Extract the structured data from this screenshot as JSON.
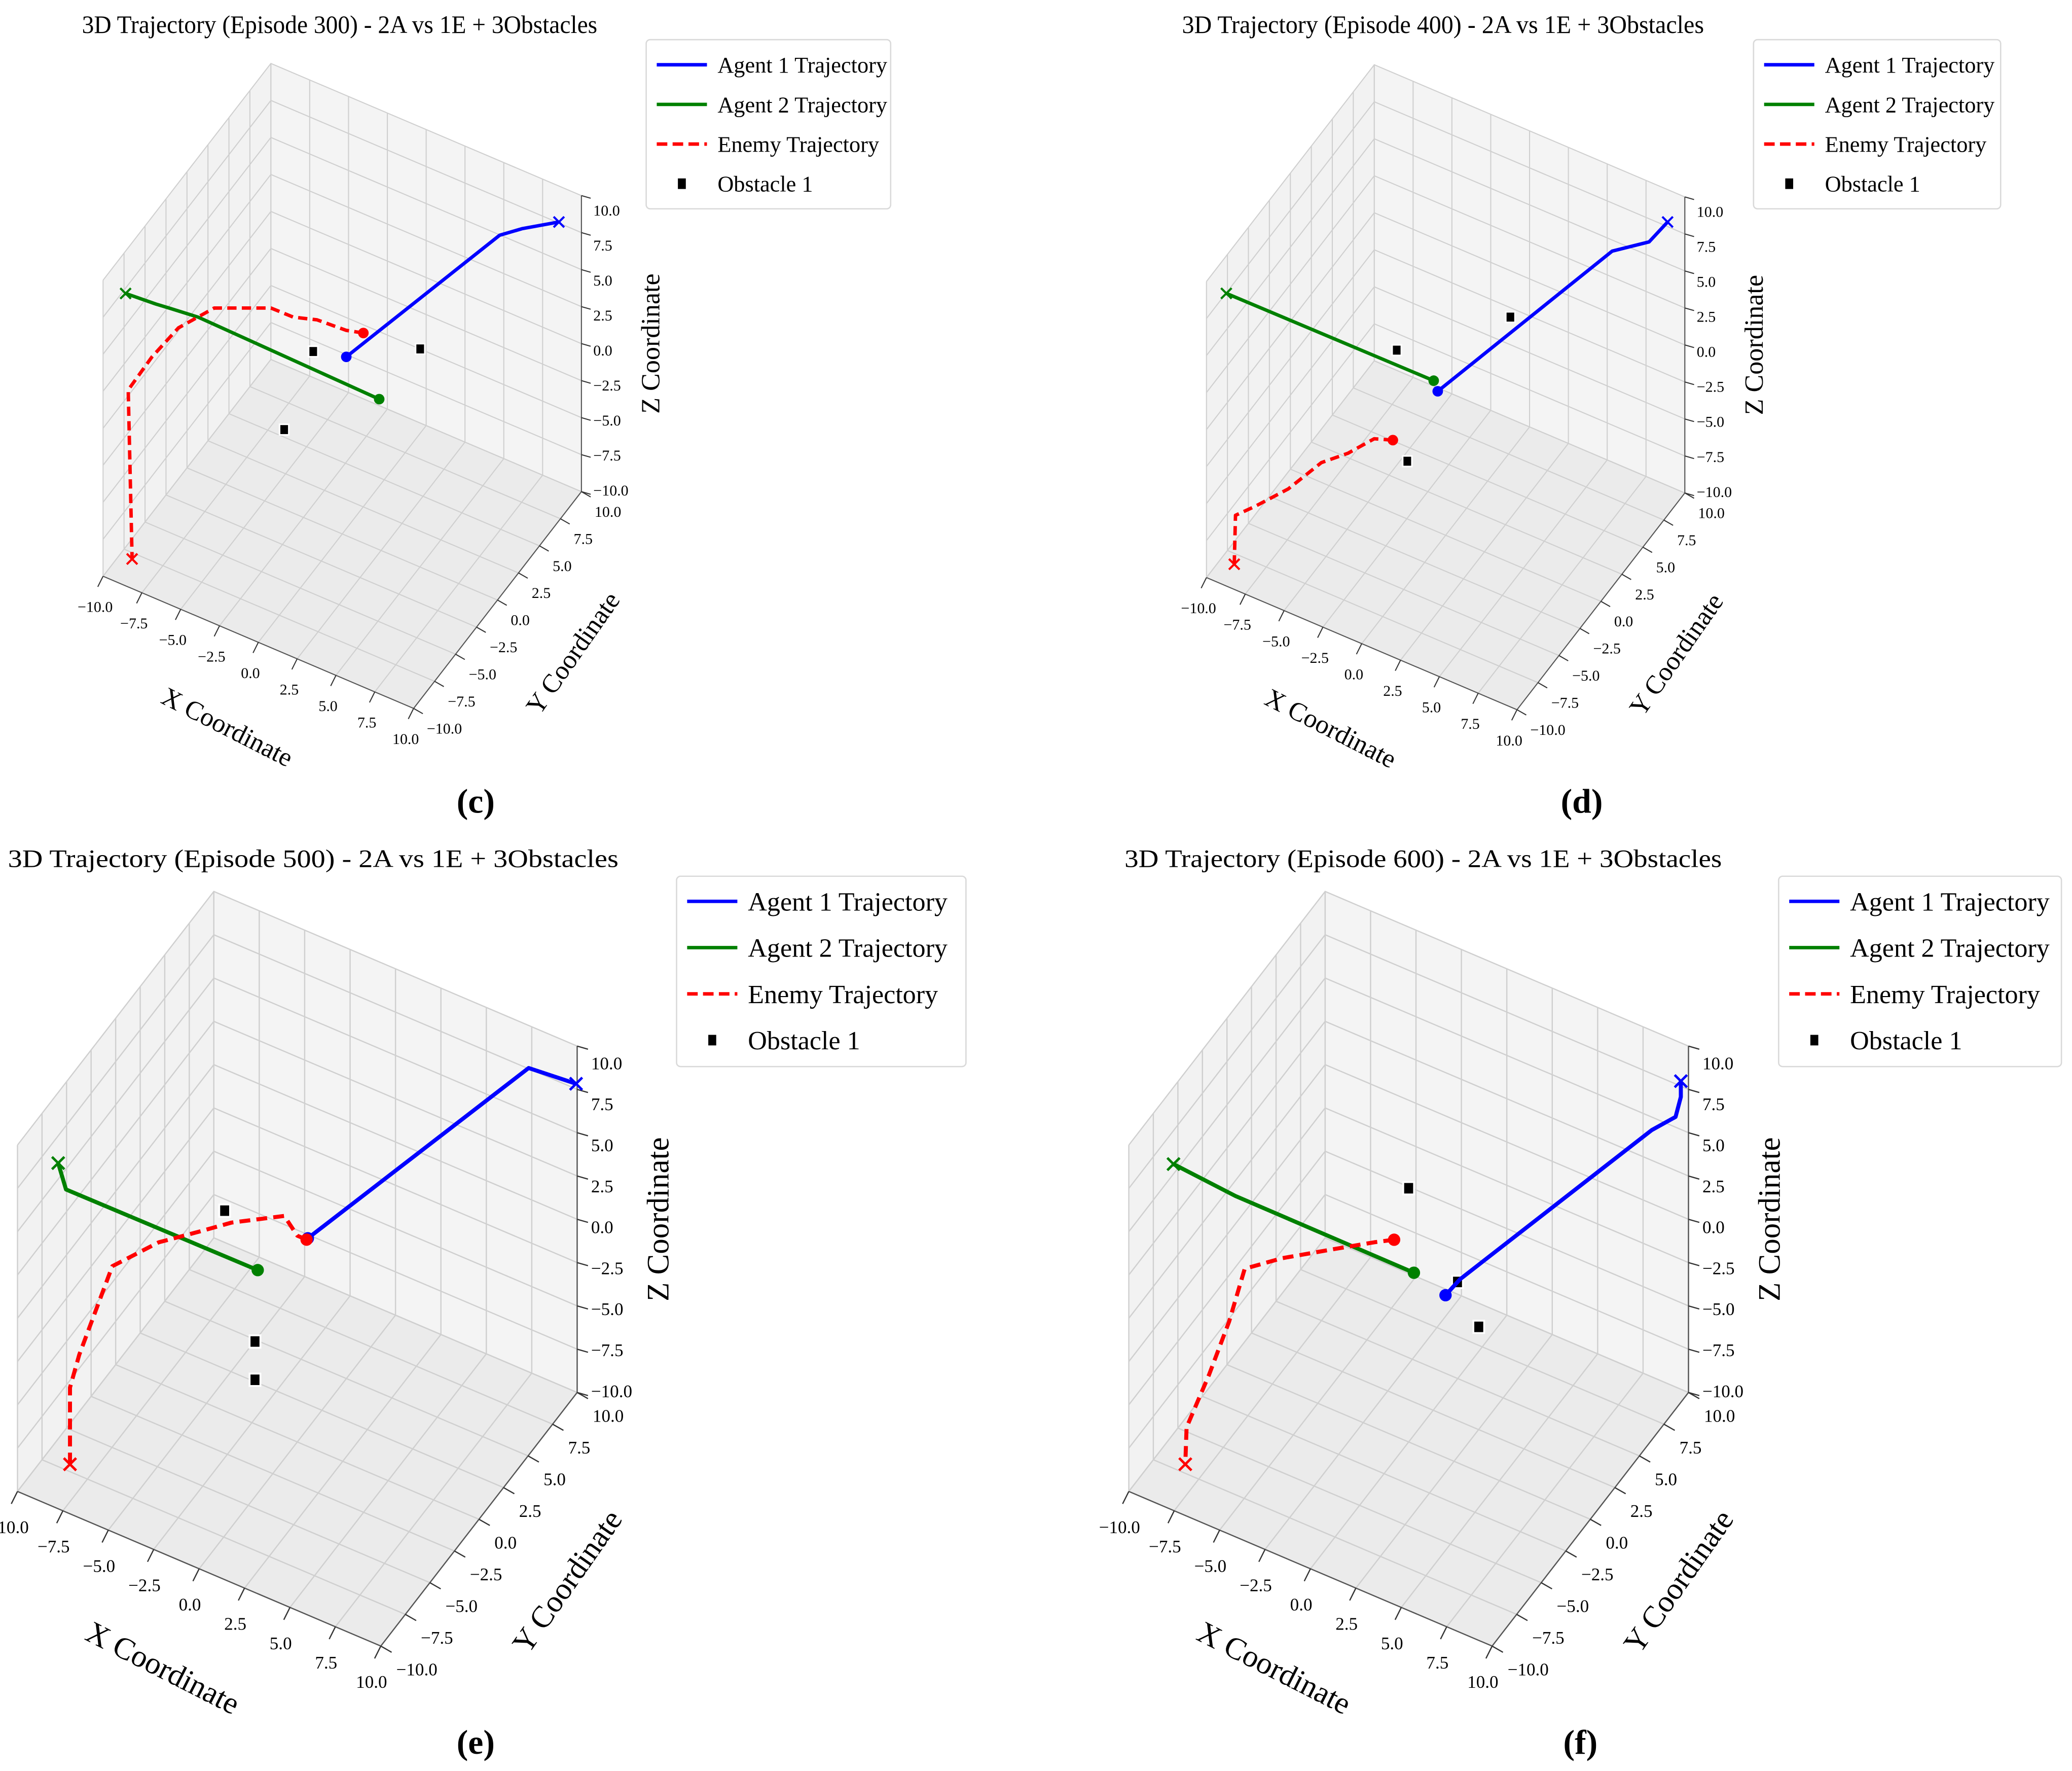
{
  "chart_data": [
    {
      "type": "line3d",
      "subfigure_label": "(c)",
      "title": "3D Trajectory (Episode 300) - 2A vs 1E + 3Obstacles",
      "xlabel": "X Coordinate",
      "ylabel": "Y Coordinate",
      "zlabel": "Z Coordinate",
      "xlim": [
        -10,
        10
      ],
      "ylim": [
        -10,
        10
      ],
      "zlim": [
        -10,
        10
      ],
      "ticks": [
        -10,
        -7.5,
        -5,
        -2.5,
        0,
        2.5,
        5,
        7.5,
        10
      ],
      "tick_labels": [
        "−10.0",
        "−7.5",
        "−5.0",
        "−2.5",
        "0.0",
        "2.5",
        "5.0",
        "7.5",
        "10.0"
      ],
      "grid": true,
      "legend": [
        "Agent 1 Trajectory",
        "Agent 2 Trajectory",
        "Enemy Trajectory",
        "Obstacle 1"
      ],
      "legend_position": "outside-top-right",
      "series": [
        {
          "name": "Agent 1 Trajectory",
          "color": "#0000ff",
          "style": "solid",
          "points": [
            [
              0.26,
              0,
              2.08
            ],
            [
              6.89,
              6,
              8.86
            ],
            [
              7.25,
              8,
              8.0
            ],
            [
              8.55,
              10,
              7.57
            ]
          ]
        },
        {
          "name": "Agent 2 Trajectory",
          "color": "#008000",
          "style": "solid",
          "points": [
            [
              2.38,
              0,
              0.17
            ],
            [
              -4.95,
              -8,
              8.29
            ],
            [
              -6.83,
              -8,
              8.07
            ],
            [
              -7.68,
              -8,
              7.96
            ],
            [
              -8.55,
              -10,
              9.75
            ]
          ]
        },
        {
          "name": "Enemy Trajectory",
          "color": "#ff0000",
          "style": "dashed",
          "points": [
            [
              1.36,
              0,
              4.18
            ],
            [
              0.26,
              0,
              3.87
            ],
            [
              -1.62,
              0,
              3.74
            ],
            [
              -3.15,
              0,
              3.24
            ],
            [
              -3.51,
              -2,
              5.16
            ],
            [
              -6.09,
              -4,
              5.47
            ],
            [
              -7.31,
              -6,
              5.05
            ],
            [
              -7.93,
              -8,
              4.28
            ],
            [
              -8.38,
              -10,
              3.31
            ],
            [
              -8.13,
              -10,
              -8.0
            ]
          ]
        }
      ],
      "obstacles": [
        [
          -1.87,
          0,
          1.49
        ],
        [
          5.02,
          0,
          4.74
        ],
        [
          -3.74,
          0,
          -4.62
        ]
      ]
    },
    {
      "type": "line3d",
      "subfigure_label": "(d)",
      "title": "3D Trajectory (Episode 400) - 2A vs 1E + 3Obstacles",
      "xlabel": "X Coordinate",
      "ylabel": "Y Coordinate",
      "zlabel": "Z Coordinate",
      "xlim": [
        -10,
        10
      ],
      "ylim": [
        -10,
        10
      ],
      "zlim": [
        -10,
        10
      ],
      "ticks": [
        -10,
        -7.5,
        -5,
        -2.5,
        0,
        2.5,
        5,
        7.5,
        10
      ],
      "tick_labels": [
        "−10.0",
        "−7.5",
        "−5.0",
        "−2.5",
        "0.0",
        "2.5",
        "5.0",
        "7.5",
        "10.0"
      ],
      "grid": true,
      "legend": [
        "Agent 1 Trajectory",
        "Agent 2 Trajectory",
        "Enemy Trajectory",
        "Obstacle 1"
      ],
      "legend_position": "outside-top-right",
      "series": [
        {
          "name": "Agent 1 Trajectory",
          "color": "#0000ff",
          "style": "solid",
          "points": [
            [
              -0.51,
              0,
              -0.5
            ],
            [
              7.48,
              6,
              8.14
            ],
            [
              8.24,
              9,
              6.91
            ],
            [
              8.89,
              10,
              7.81
            ]
          ]
        },
        {
          "name": "Agent 2 Trajectory",
          "color": "#008000",
          "style": "solid",
          "points": [
            [
              -0.77,
              0,
              0.1
            ],
            [
              -8.72,
              -10,
              9.77
            ]
          ]
        },
        {
          "name": "Enemy Trajectory",
          "color": "#ff0000",
          "style": "dashed",
          "points": [
            [
              -3.4,
              0,
              -5.09
            ],
            [
              -4.06,
              -1,
              -4.56
            ],
            [
              -5.22,
              -2,
              -5.33
            ],
            [
              -5.84,
              -4,
              -4.77
            ],
            [
              -6.89,
              -6,
              -5.55
            ],
            [
              -7.93,
              -8,
              -5.72
            ],
            [
              -8.13,
              -10,
              -4.96
            ],
            [
              -8.21,
              -10,
              -8.3
            ]
          ]
        }
      ],
      "obstacles": [
        [
          -3.15,
          0,
          1.1
        ],
        [
          4.17,
          0,
          6.6
        ],
        [
          -2.47,
          0,
          -6.1
        ]
      ]
    },
    {
      "type": "line3d",
      "subfigure_label": "(e)",
      "title": "3D Trajectory (Episode 500) - 2A vs 1E + 3Obstacles",
      "xlabel": "X Coordinate",
      "ylabel": "Y Coordinate",
      "zlabel": "Z Coordinate",
      "xlim": [
        -10,
        10
      ],
      "ylim": [
        -10,
        10
      ],
      "zlim": [
        -10,
        10
      ],
      "ticks": [
        -10,
        -7.5,
        -5,
        -2.5,
        0,
        2.5,
        5,
        7.5,
        10
      ],
      "tick_labels": [
        "−10.0",
        "−7.5",
        "−5.0",
        "−2.5",
        "0.0",
        "2.5",
        "5.0",
        "7.5",
        "10.0"
      ],
      "grid": true,
      "legend": [
        "Agent 1 Trajectory",
        "Agent 2 Trajectory",
        "Enemy Trajectory",
        "Obstacle 1"
      ],
      "legend_position": "outside-top-right",
      "series": [
        {
          "name": "Agent 1 Trajectory",
          "color": "#0000ff",
          "style": "solid",
          "points": [
            [
              0.58,
              0,
              2.02
            ],
            [
              8.41,
              8,
              9.49
            ],
            [
              9.94,
              10,
              7.8
            ]
          ]
        },
        {
          "name": "Agent 2 Trajectory",
          "color": "#008000",
          "style": "solid",
          "points": [
            [
              -2.18,
              0,
              -1.05
            ],
            [
              -7.33,
              -10,
              8.63
            ],
            [
              -7.76,
              -10,
              9.96
            ]
          ]
        },
        {
          "name": "Enemy Trajectory",
          "color": "#ff0000",
          "style": "dashed",
          "points": [
            [
              0.51,
              0,
              1.91
            ],
            [
              0,
              0,
              1.91
            ],
            [
              -0.72,
              0,
              2.73
            ],
            [
              -2.55,
              -2,
              2.99
            ],
            [
              -3.29,
              -4,
              3.59
            ],
            [
              -4.39,
              -6,
              3.96
            ],
            [
              -5.86,
              -8,
              3.39
            ],
            [
              -6.6,
              -10,
              -0.59
            ],
            [
              -7.11,
              -10,
              -2.71
            ],
            [
              -7.11,
              -10,
              -7.14
            ]
          ]
        }
      ],
      "obstacles": [
        [
          -4.0,
          0,
          1.57
        ],
        [
          -2.33,
          0,
          -5.24
        ],
        [
          -2.33,
          0,
          -7.45
        ]
      ]
    },
    {
      "type": "line3d",
      "subfigure_label": "(f)",
      "title": "3D Trajectory (Episode 600) - 2A vs 1E + 3Obstacles",
      "xlabel": "X Coordinate",
      "ylabel": "Y Coordinate",
      "zlabel": "Z Coordinate",
      "xlim": [
        -10,
        10
      ],
      "ylim": [
        -10,
        10
      ],
      "zlim": [
        -10,
        10
      ],
      "ticks": [
        -10,
        -7.5,
        -5,
        -2.5,
        0,
        2.5,
        5,
        7.5,
        10
      ],
      "tick_labels": [
        "−10.0",
        "−7.5",
        "−5.0",
        "−2.5",
        "0.0",
        "2.5",
        "5.0",
        "7.5",
        "10.0"
      ],
      "grid": true,
      "legend": [
        "Agent 1 Trajectory",
        "Agent 2 Trajectory",
        "Enemy Trajectory",
        "Obstacle 1"
      ],
      "legend_position": "outside-top-right",
      "series": [
        {
          "name": "Agent 1 Trajectory",
          "color": "#0000ff",
          "style": "solid",
          "points": [
            [
              2.03,
              0,
              -0.62
            ],
            [
              2.83,
              0,
              0.66
            ],
            [
              9.6,
              7,
              7.17
            ],
            [
              9.83,
              9,
              6.57
            ],
            [
              9.58,
              10,
              6.88
            ],
            [
              9.58,
              10,
              7.79
            ]
          ]
        },
        {
          "name": "Agent 2 Trajectory",
          "color": "#008000",
          "style": "solid",
          "points": [
            [
              0.29,
              0,
              -0.1
            ],
            [
              -5.75,
              -7,
              6.76
            ],
            [
              -7.54,
              -10,
              10.0
            ]
          ]
        },
        {
          "name": "Enemy Trajectory",
          "color": "#ff0000",
          "style": "dashed",
          "points": [
            [
              -0.8,
              0,
              1.32
            ],
            [
              -1.35,
              -1,
              1.66
            ],
            [
              -2.46,
              -3,
              2.24
            ],
            [
              -3.74,
              -6,
              3.33
            ],
            [
              -4.7,
              -8,
              3.76
            ],
            [
              -4.48,
              -10,
              2.27
            ],
            [
              -5.58,
              -10,
              -1.28
            ],
            [
              -6.82,
              -10,
              -4.88
            ],
            [
              -6.89,
              -10,
              -7.04
            ]
          ]
        }
      ],
      "obstacles": [
        [
          0,
          0,
          4.65
        ],
        [
          2.69,
          0,
          0.44
        ],
        [
          3.86,
          0,
          -1.63
        ]
      ]
    }
  ]
}
